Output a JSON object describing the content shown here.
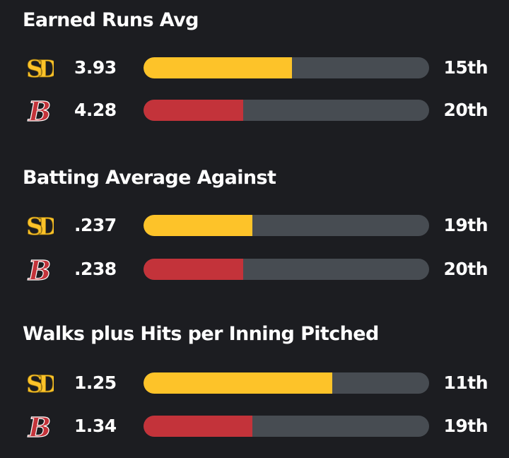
{
  "colors": {
    "background": "#1c1d21",
    "padres": "#fdc329",
    "redsox": "#c3333a",
    "track": "#474c52"
  },
  "teams": {
    "padres": {
      "logo_icon": "padres-sd-logo-icon"
    },
    "redsox": {
      "logo_icon": "red-sox-b-logo-icon"
    }
  },
  "sections": [
    {
      "title": "Earned Runs Avg",
      "rows": [
        {
          "team": "padres",
          "value": "3.93",
          "rank": "15th",
          "fill_fraction": 0.52
        },
        {
          "team": "redsox",
          "value": "4.28",
          "rank": "20th",
          "fill_fraction": 0.35
        }
      ]
    },
    {
      "title": "Batting Average Against",
      "rows": [
        {
          "team": "padres",
          "value": ".237",
          "rank": "19th",
          "fill_fraction": 0.38
        },
        {
          "team": "redsox",
          "value": ".238",
          "rank": "20th",
          "fill_fraction": 0.35
        }
      ]
    },
    {
      "title": "Walks plus Hits per Inning Pitched",
      "rows": [
        {
          "team": "padres",
          "value": "1.25",
          "rank": "11th",
          "fill_fraction": 0.66
        },
        {
          "team": "redsox",
          "value": "1.34",
          "rank": "19th",
          "fill_fraction": 0.38
        }
      ]
    }
  ]
}
